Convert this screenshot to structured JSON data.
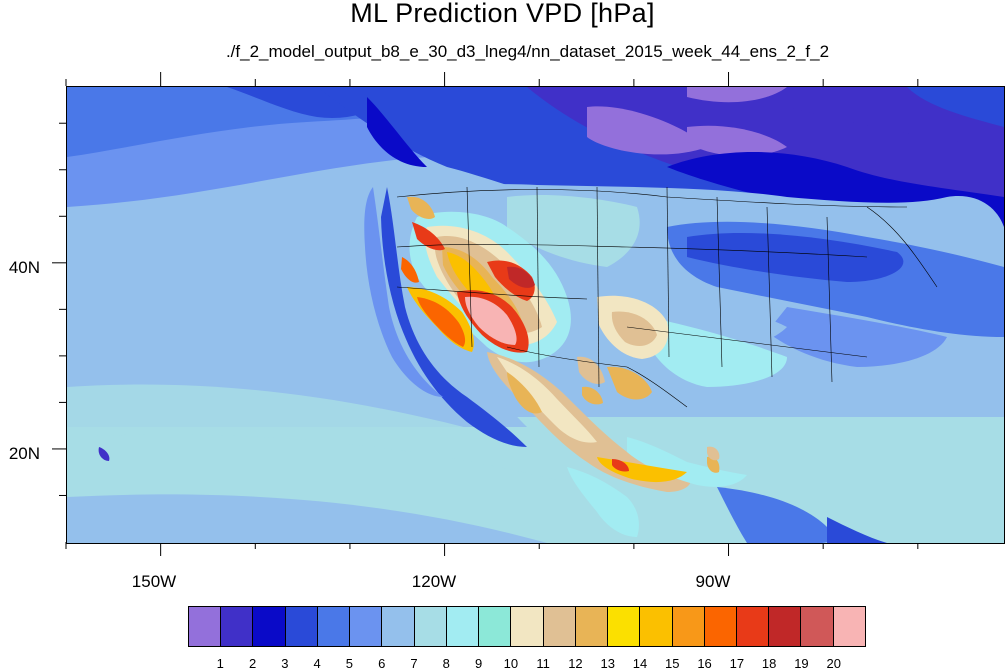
{
  "title": "ML Prediction VPD [hPa]",
  "subtitle": "./f_2_model_output_b8_e_30_d3_lneg4/nn_dataset_2015_week_44_ens_2_f_2",
  "axes": {
    "lon_labels": [
      "150W",
      "120W",
      "90W"
    ],
    "lon_values": [
      -150,
      -120,
      -90
    ],
    "lat_labels": [
      "40N",
      "20N"
    ],
    "lat_values": [
      40,
      20
    ],
    "lon_range": [
      -160,
      -61
    ],
    "lat_range": [
      10,
      59
    ]
  },
  "colorbar": {
    "labels": [
      "1",
      "2",
      "3",
      "4",
      "5",
      "6",
      "7",
      "8",
      "9",
      "10",
      "11",
      "12",
      "13",
      "14",
      "15",
      "16",
      "17",
      "18",
      "19",
      "20"
    ],
    "colors": [
      "#9370db",
      "#4030c8",
      "#0a0ac8",
      "#2a4ad8",
      "#4a78e8",
      "#6b93f0",
      "#94c0ec",
      "#a7dde6",
      "#a2ecf2",
      "#8ce8d8",
      "#f2e6c2",
      "#e0c094",
      "#e8b456",
      "#fbe000",
      "#fbc000",
      "#f89818",
      "#fb6500",
      "#e83a18",
      "#c02828",
      "#d05858",
      "#f8b4b4"
    ]
  },
  "map": {
    "ocean_color": "#94c0ec",
    "land_base_color": "#2a4ad8"
  }
}
